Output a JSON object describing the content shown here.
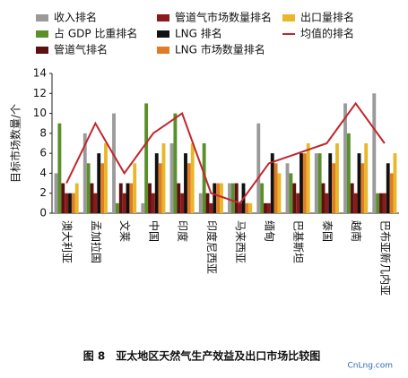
{
  "chart_data": {
    "type": "bar",
    "caption": "图 8　亚太地区天然气生产效益及出口市场比较图",
    "watermark": "CnLng.com",
    "y_label": "目标市场数量/个",
    "categories": [
      "澳大利亚",
      "孟加拉国",
      "文莱",
      "中国",
      "印度",
      "印度尼西亚",
      "马来西亚",
      "缅甸",
      "巴基斯坦",
      "泰国",
      "越南",
      "巴布亚新几内亚"
    ],
    "ylim": [
      0,
      14
    ],
    "yticks": [
      0,
      2,
      4,
      6,
      8,
      10,
      12,
      14
    ],
    "series": [
      {
        "name": "收入排名",
        "color": "#9a9a9a",
        "values": [
          4,
          8,
          10,
          1,
          7,
          2,
          3,
          9,
          5,
          6,
          11,
          12
        ]
      },
      {
        "name": "管道气市场数量排名",
        "color": "#8b1a1a",
        "values": [
          2,
          2,
          2,
          2,
          2,
          1,
          1,
          1,
          2,
          2,
          2,
          2
        ]
      },
      {
        "name": "出口量排名",
        "color": "#e8b82a",
        "values": [
          3,
          7,
          5,
          7,
          7,
          3,
          1,
          4,
          7,
          7,
          7,
          6
        ]
      },
      {
        "name": "占 GDP 比重排名",
        "color": "#5a8f2a",
        "values": [
          9,
          5,
          1,
          11,
          10,
          7,
          3,
          3,
          4,
          6,
          8,
          2
        ]
      },
      {
        "name": "LNG 排名",
        "color": "#111111",
        "values": [
          2,
          6,
          3,
          6,
          6,
          3,
          3,
          6,
          6,
          6,
          6,
          5
        ]
      },
      {
        "name": "均值的排名",
        "type": "line",
        "color": "#c0262d",
        "values": [
          3,
          9,
          4,
          8,
          10,
          2,
          1,
          5,
          6,
          7,
          11,
          7
        ]
      },
      {
        "name": "管道气排名",
        "color": "#5c1010",
        "values": [
          3,
          3,
          3,
          3,
          3,
          2,
          3,
          1,
          3,
          3,
          3,
          2
        ]
      },
      {
        "name": "LNG 市场数量排名",
        "color": "#e07b26",
        "values": [
          2,
          5,
          3,
          5,
          5,
          3,
          1,
          5,
          6,
          5,
          5,
          4
        ]
      }
    ]
  }
}
